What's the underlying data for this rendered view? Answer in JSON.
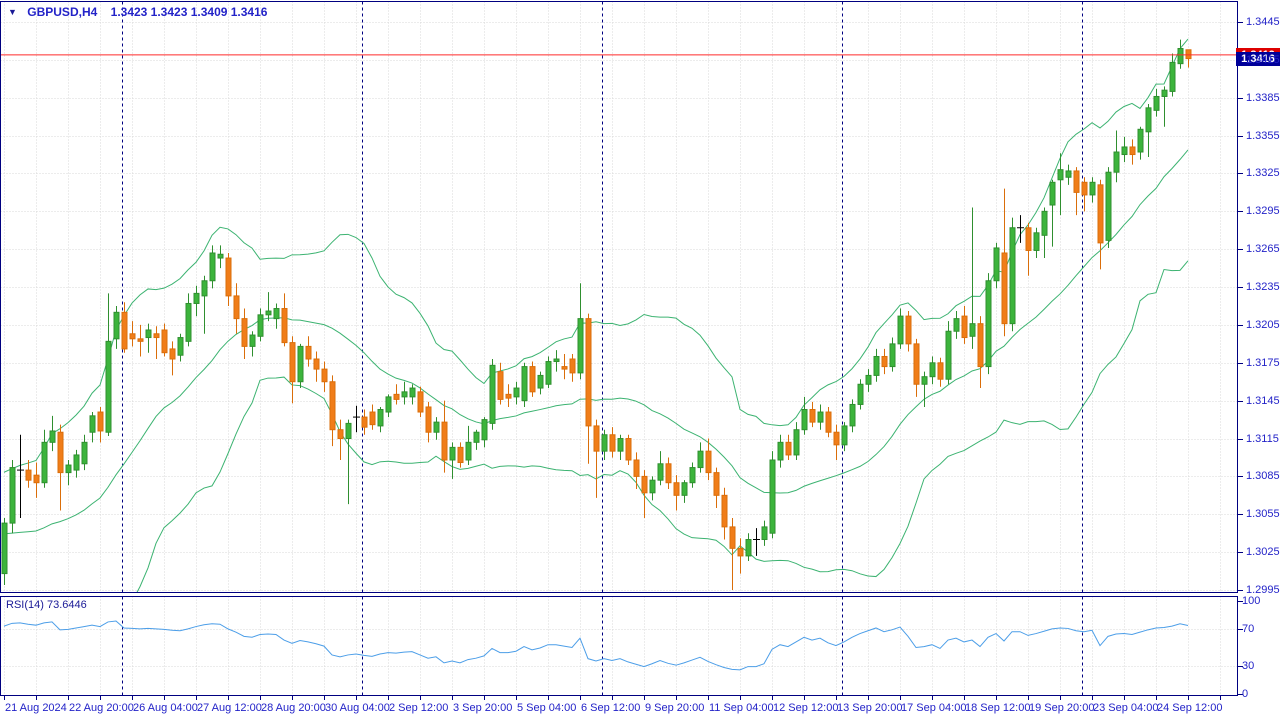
{
  "title": {
    "symbol_period": "GBPUSD,H4",
    "ohlc_text": "1.3423 1.3423 1.3409 1.3416"
  },
  "quotes": {
    "bid": "1.3416",
    "ask": "1.3419"
  },
  "rsi_panel": {
    "label": "RSI(14) 73.6446"
  },
  "colors": {
    "background": "#ffffff",
    "grid": "#d9d9d9",
    "pane_border": "#000080",
    "week_separator": "#000080",
    "axis_text": "#2323c8",
    "bull_fill": "#3cb43c",
    "bull_border": "#2f8f2f",
    "bear_fill": "#f07d19",
    "bear_border": "#da6e0a",
    "doji": "#000000",
    "band_line": "#3cb371",
    "rsi_line": "#4c9ee8",
    "ask_line": "#ff2a2a",
    "ask_tag_bg": "#dd0000",
    "bid_tag_bg": "#000099"
  },
  "chart_data": {
    "type": "candlestick",
    "symbol": "GBPUSD",
    "timeframe": "H4",
    "title": "GBPUSD,H4",
    "legend_position": "none",
    "grid": true,
    "overlays": [
      {
        "type": "bollinger_bands",
        "period": 20,
        "deviation": 2
      }
    ],
    "indicator": {
      "type": "rsi",
      "period": 14,
      "current": 73.6446,
      "range": [
        0,
        100
      ],
      "guides": [
        70,
        30
      ]
    },
    "axis": {
      "price_top": 1.3445,
      "price_step": 0.003,
      "price_labels": [
        "1.3445",
        "1.3415",
        "1.3385",
        "1.3355",
        "1.3325",
        "1.3295",
        "1.3265",
        "1.3235",
        "1.3205",
        "1.3175",
        "1.3145",
        "1.3115",
        "1.3085",
        "1.3055",
        "1.3025",
        "1.2995"
      ],
      "rsi_labels": [
        "100",
        "70",
        "30",
        "0"
      ],
      "rsi_label_values": [
        100,
        70,
        30,
        0
      ],
      "time_labels": [
        "21 Aug 2024",
        "22 Aug 20:00",
        "26 Aug 04:00",
        "27 Aug 12:00",
        "28 Aug 20:00",
        "30 Aug 04:00",
        "2 Sep 12:00",
        "3 Sep 20:00",
        "5 Sep 04:00",
        "6 Sep 12:00",
        "9 Sep 20:00",
        "11 Sep 04:00",
        "12 Sep 12:00",
        "13 Sep 20:00",
        "17 Sep 04:00",
        "18 Sep 12:00",
        "19 Sep 20:00",
        "23 Sep 04:00",
        "24 Sep 12:00"
      ],
      "time_label_every": 8
    },
    "week_separator_indices": [
      15,
      45,
      75,
      105,
      135
    ],
    "presample_closes": [
      1.3085,
      1.308,
      1.3078,
      1.3072,
      1.3068,
      1.3062,
      1.3058,
      1.3052,
      1.3048,
      1.3042,
      1.3038,
      1.3032,
      1.3028,
      1.3022,
      1.3018,
      1.3014,
      1.301,
      1.3008,
      1.3006,
      1.3005
    ],
    "candles": [
      [
        1.3008,
        1.3052,
        1.2999,
        1.3048
      ],
      [
        1.3048,
        1.3098,
        1.304,
        1.3092
      ],
      [
        1.309,
        1.3118,
        1.3052,
        1.309
      ],
      [
        1.309,
        1.3098,
        1.3076,
        1.3082
      ],
      [
        1.3086,
        1.3096,
        1.3068,
        1.308
      ],
      [
        1.308,
        1.3122,
        1.3076,
        1.3112
      ],
      [
        1.3112,
        1.3133,
        1.3105,
        1.3121
      ],
      [
        1.312,
        1.3126,
        1.3058,
        1.3088
      ],
      [
        1.3088,
        1.3098,
        1.3078,
        1.3094
      ],
      [
        1.309,
        1.3106,
        1.3084,
        1.3102
      ],
      [
        1.3095,
        1.3118,
        1.309,
        1.3112
      ],
      [
        1.312,
        1.3136,
        1.3112,
        1.3133
      ],
      [
        1.3136,
        1.314,
        1.3112,
        1.3121
      ],
      [
        1.312,
        1.323,
        1.3117,
        1.3192
      ],
      [
        1.3194,
        1.322,
        1.3186,
        1.3215
      ],
      [
        1.3215,
        1.3223,
        1.3183,
        1.3186
      ],
      [
        1.3198,
        1.3208,
        1.3188,
        1.3194
      ],
      [
        1.3194,
        1.3205,
        1.318,
        1.3192
      ],
      [
        1.3195,
        1.3206,
        1.3183,
        1.3201
      ],
      [
        1.3198,
        1.3204,
        1.3178,
        1.3195
      ],
      [
        1.3201,
        1.3206,
        1.318,
        1.3183
      ],
      [
        1.3186,
        1.3192,
        1.3165,
        1.3178
      ],
      [
        1.3181,
        1.3198,
        1.3176,
        1.3195
      ],
      [
        1.3192,
        1.323,
        1.3188,
        1.3222
      ],
      [
        1.3222,
        1.3236,
        1.3212,
        1.323
      ],
      [
        1.3228,
        1.3244,
        1.3198,
        1.324
      ],
      [
        1.324,
        1.3268,
        1.3234,
        1.3262
      ],
      [
        1.3258,
        1.3268,
        1.325,
        1.3261
      ],
      [
        1.3258,
        1.3262,
        1.322,
        1.3228
      ],
      [
        1.3228,
        1.3238,
        1.3198,
        1.321
      ],
      [
        1.321,
        1.3218,
        1.3178,
        1.3188
      ],
      [
        1.3188,
        1.32,
        1.318,
        1.3197
      ],
      [
        1.3196,
        1.3218,
        1.3192,
        1.3213
      ],
      [
        1.3213,
        1.3231,
        1.3208,
        1.3216
      ],
      [
        1.321,
        1.3222,
        1.3202,
        1.3218
      ],
      [
        1.3218,
        1.323,
        1.3188,
        1.3191
      ],
      [
        1.3191,
        1.3196,
        1.3143,
        1.316
      ],
      [
        1.316,
        1.319,
        1.3155,
        1.3188
      ],
      [
        1.3188,
        1.3196,
        1.3172,
        1.3178
      ],
      [
        1.3178,
        1.3184,
        1.316,
        1.317
      ],
      [
        1.317,
        1.3176,
        1.3152,
        1.316
      ],
      [
        1.316,
        1.3165,
        1.3109,
        1.3122
      ],
      [
        1.3122,
        1.313,
        1.3098,
        1.3115
      ],
      [
        1.3115,
        1.313,
        1.3063,
        1.3127
      ],
      [
        1.3132,
        1.3141,
        1.312,
        1.3132
      ],
      [
        1.3132,
        1.3138,
        1.3118,
        1.3124
      ],
      [
        1.3136,
        1.3142,
        1.3122,
        1.3126
      ],
      [
        1.3125,
        1.314,
        1.312,
        1.3138
      ],
      [
        1.3136,
        1.315,
        1.3132,
        1.3148
      ],
      [
        1.315,
        1.3158,
        1.3142,
        1.3146
      ],
      [
        1.3148,
        1.316,
        1.3142,
        1.3152
      ],
      [
        1.3148,
        1.3158,
        1.3142,
        1.3155
      ],
      [
        1.3152,
        1.3156,
        1.3132,
        1.3136
      ],
      [
        1.314,
        1.3144,
        1.3112,
        1.312
      ],
      [
        1.312,
        1.3132,
        1.3114,
        1.3128
      ],
      [
        1.3128,
        1.3145,
        1.3088,
        1.3098
      ],
      [
        1.3098,
        1.3112,
        1.3083,
        1.3108
      ],
      [
        1.3108,
        1.3112,
        1.3092,
        1.3096
      ],
      [
        1.3098,
        1.3125,
        1.3094,
        1.3112
      ],
      [
        1.3112,
        1.3122,
        1.3106,
        1.312
      ],
      [
        1.3114,
        1.3132,
        1.3108,
        1.313
      ],
      [
        1.3127,
        1.3178,
        1.3122,
        1.3173
      ],
      [
        1.3168,
        1.3175,
        1.3142,
        1.3146
      ],
      [
        1.315,
        1.3158,
        1.314,
        1.3147
      ],
      [
        1.3148,
        1.316,
        1.3142,
        1.3155
      ],
      [
        1.3145,
        1.3175,
        1.314,
        1.3172
      ],
      [
        1.3172,
        1.3176,
        1.3148,
        1.3152
      ],
      [
        1.3155,
        1.3168,
        1.315,
        1.3165
      ],
      [
        1.3158,
        1.318,
        1.3155,
        1.3176
      ],
      [
        1.3176,
        1.3185,
        1.3168,
        1.3178
      ],
      [
        1.3172,
        1.3182,
        1.3162,
        1.317
      ],
      [
        1.3178,
        1.3182,
        1.316,
        1.3167
      ],
      [
        1.3167,
        1.3238,
        1.3162,
        1.321
      ],
      [
        1.321,
        1.3214,
        1.3095,
        1.3125
      ],
      [
        1.3125,
        1.313,
        1.3068,
        1.3105
      ],
      [
        1.3105,
        1.3122,
        1.3098,
        1.3118
      ],
      [
        1.3118,
        1.3124,
        1.31,
        1.3105
      ],
      [
        1.3105,
        1.3118,
        1.3098,
        1.3115
      ],
      [
        1.3115,
        1.3118,
        1.3094,
        1.3098
      ],
      [
        1.3098,
        1.3104,
        1.3075,
        1.3085
      ],
      [
        1.3085,
        1.309,
        1.3052,
        1.3072
      ],
      [
        1.3072,
        1.3085,
        1.3066,
        1.3082
      ],
      [
        1.3082,
        1.3105,
        1.3078,
        1.3095
      ],
      [
        1.3095,
        1.31,
        1.3075,
        1.308
      ],
      [
        1.308,
        1.3086,
        1.3058,
        1.307
      ],
      [
        1.307,
        1.3082,
        1.3064,
        1.308
      ],
      [
        1.308,
        1.3096,
        1.3076,
        1.3092
      ],
      [
        1.3092,
        1.3112,
        1.3088,
        1.3105
      ],
      [
        1.3105,
        1.3115,
        1.3082,
        1.3088
      ],
      [
        1.3088,
        1.3092,
        1.306,
        1.307
      ],
      [
        1.307,
        1.3076,
        1.3035,
        1.3045
      ],
      [
        1.3045,
        1.3052,
        1.2995,
        1.3028
      ],
      [
        1.3028,
        1.3036,
        1.3008,
        1.3022
      ],
      [
        1.3022,
        1.304,
        1.3018,
        1.3035
      ],
      [
        1.3035,
        1.3044,
        1.3022,
        1.3035
      ],
      [
        1.3035,
        1.305,
        1.303,
        1.3045
      ],
      [
        1.304,
        1.3105,
        1.3036,
        1.3098
      ],
      [
        1.3098,
        1.3118,
        1.3092,
        1.3112
      ],
      [
        1.3112,
        1.3118,
        1.3098,
        1.3102
      ],
      [
        1.3102,
        1.3128,
        1.3098,
        1.3122
      ],
      [
        1.3122,
        1.3148,
        1.3118,
        1.3138
      ],
      [
        1.3138,
        1.3144,
        1.3124,
        1.3128
      ],
      [
        1.3128,
        1.3142,
        1.3122,
        1.3136
      ],
      [
        1.3136,
        1.314,
        1.3116,
        1.312
      ],
      [
        1.312,
        1.3126,
        1.3098,
        1.311
      ],
      [
        1.311,
        1.3128,
        1.3105,
        1.3125
      ],
      [
        1.3125,
        1.3146,
        1.312,
        1.3142
      ],
      [
        1.3142,
        1.3162,
        1.3138,
        1.3158
      ],
      [
        1.3158,
        1.317,
        1.3152,
        1.3165
      ],
      [
        1.3165,
        1.3186,
        1.316,
        1.318
      ],
      [
        1.318,
        1.3186,
        1.3166,
        1.3172
      ],
      [
        1.3172,
        1.3195,
        1.3168,
        1.319
      ],
      [
        1.319,
        1.3218,
        1.3186,
        1.3212
      ],
      [
        1.3212,
        1.3216,
        1.3184,
        1.319
      ],
      [
        1.319,
        1.3194,
        1.3148,
        1.3158
      ],
      [
        1.3158,
        1.3168,
        1.314,
        1.3164
      ],
      [
        1.3164,
        1.318,
        1.3158,
        1.3175
      ],
      [
        1.3175,
        1.3179,
        1.3156,
        1.3162
      ],
      [
        1.3162,
        1.3208,
        1.3158,
        1.32
      ],
      [
        1.32,
        1.3216,
        1.3194,
        1.321
      ],
      [
        1.3212,
        1.322,
        1.319,
        1.3195
      ],
      [
        1.3196,
        1.3298,
        1.3186,
        1.3206
      ],
      [
        1.3206,
        1.3212,
        1.3155,
        1.3172
      ],
      [
        1.3172,
        1.3246,
        1.3166,
        1.324
      ],
      [
        1.324,
        1.327,
        1.3234,
        1.3266
      ],
      [
        1.3262,
        1.3313,
        1.3196,
        1.3206
      ],
      [
        1.3206,
        1.329,
        1.32,
        1.3282
      ],
      [
        1.3282,
        1.3292,
        1.327,
        1.3282
      ],
      [
        1.3282,
        1.3286,
        1.3244,
        1.3264
      ],
      [
        1.3264,
        1.3282,
        1.3258,
        1.3278
      ],
      [
        1.3276,
        1.3298,
        1.3258,
        1.3295
      ],
      [
        1.33,
        1.332,
        1.3267,
        1.3318
      ],
      [
        1.332,
        1.3341,
        1.3292,
        1.3328
      ],
      [
        1.3322,
        1.3332,
        1.3316,
        1.3327
      ],
      [
        1.3327,
        1.333,
        1.3292,
        1.331
      ],
      [
        1.3318,
        1.3322,
        1.3295,
        1.3308
      ],
      [
        1.3308,
        1.3322,
        1.3302,
        1.3318
      ],
      [
        1.3316,
        1.332,
        1.3249,
        1.327
      ],
      [
        1.3272,
        1.333,
        1.3266,
        1.3326
      ],
      [
        1.3326,
        1.3359,
        1.3318,
        1.3342
      ],
      [
        1.334,
        1.3354,
        1.3334,
        1.3346
      ],
      [
        1.3346,
        1.3352,
        1.3332,
        1.334
      ],
      [
        1.3342,
        1.3362,
        1.3336,
        1.336
      ],
      [
        1.3358,
        1.338,
        1.3338,
        1.3377
      ],
      [
        1.3375,
        1.3392,
        1.337,
        1.3386
      ],
      [
        1.3386,
        1.3394,
        1.3362,
        1.3391
      ],
      [
        1.339,
        1.342,
        1.3386,
        1.3413
      ],
      [
        1.3412,
        1.3431,
        1.3408,
        1.3424
      ],
      [
        1.3423,
        1.3423,
        1.3409,
        1.3416
      ]
    ],
    "rsi_values": [
      73,
      76,
      76.5,
      75,
      74,
      76.5,
      77.5,
      69,
      69.5,
      71,
      72.5,
      74,
      72.5,
      77.5,
      78.5,
      71,
      70.5,
      70,
      70.5,
      70,
      69.5,
      68.5,
      68,
      70,
      72.5,
      74.5,
      75.5,
      75,
      70,
      66.5,
      62,
      61,
      64,
      64.5,
      64,
      58,
      54.5,
      57.5,
      56,
      54,
      51.5,
      42,
      40,
      42,
      43,
      41.5,
      40.5,
      43,
      44.5,
      44,
      45,
      45.5,
      42,
      38.5,
      40,
      33.5,
      35.5,
      33.5,
      37,
      38.5,
      41,
      49,
      44.5,
      44.5,
      46,
      51,
      47.5,
      49.5,
      53,
      53,
      51.5,
      50,
      60,
      38,
      35.5,
      38,
      36,
      38,
      34.5,
      32,
      29.5,
      32.5,
      36,
      33,
      31,
      33.5,
      36.5,
      39.5,
      35,
      31.5,
      28.5,
      26.5,
      26,
      29.5,
      29.5,
      32.5,
      48,
      53,
      51,
      56,
      61,
      58,
      60,
      55,
      52,
      56,
      61,
      65,
      68,
      71,
      67,
      69,
      72,
      62,
      50,
      51,
      53,
      49,
      58,
      60,
      56,
      58,
      51,
      61,
      65,
      57,
      67,
      67,
      63,
      65,
      67.5,
      70,
      71,
      70.5,
      68,
      67,
      68.5,
      52,
      62,
      64.5,
      65,
      64,
      66.5,
      69,
      71,
      71.5,
      73,
      75.5,
      73.6446
    ]
  }
}
